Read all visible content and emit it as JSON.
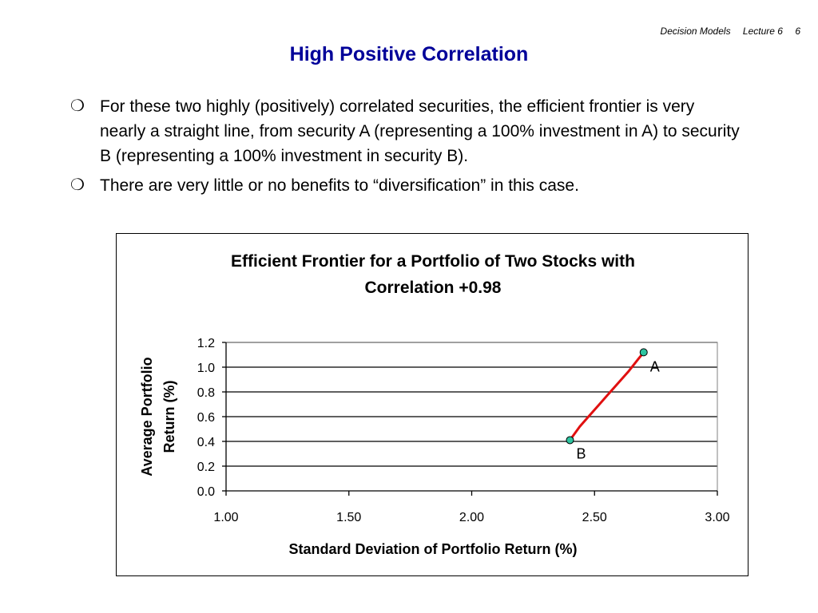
{
  "header": {
    "course": "Decision Models",
    "lecture": "Lecture 6",
    "page": "6"
  },
  "title": "High Positive Correlation",
  "bullets": [
    {
      "icon": "hollow-circle-bullet-icon",
      "mark": "❍",
      "text": "For these two highly (positively) correlated securities, the efficient frontier is very nearly a straight line, from security A (representing a 100% investment in A) to security B (representing a 100% investment in security B)."
    },
    {
      "icon": "hollow-circle-bullet-icon",
      "mark": "❍",
      "text": "There are very little or no benefits to “diversification” in this case."
    }
  ],
  "chart_data": {
    "type": "line",
    "title_lines": [
      "Efficient Frontier for a Portfolio of Two Stocks with",
      "Correlation +0.98"
    ],
    "xlabel": "Standard Deviation of Portfolio Return (%)",
    "ylabel_lines": [
      "Average Portfolio",
      "Return (%)"
    ],
    "xlim": [
      1.0,
      3.0
    ],
    "ylim": [
      0.0,
      1.2
    ],
    "xticks": [
      "1.00",
      "1.50",
      "2.00",
      "2.50",
      "3.00"
    ],
    "yticks": [
      "0.0",
      "0.2",
      "0.4",
      "0.6",
      "0.8",
      "1.0",
      "1.2"
    ],
    "grid": "horizontal",
    "series": [
      {
        "color": "#e01010",
        "x": [
          2.4,
          2.44,
          2.48,
          2.52,
          2.56,
          2.6,
          2.64,
          2.68,
          2.7
        ],
        "y": [
          0.41,
          0.52,
          0.61,
          0.7,
          0.79,
          0.88,
          0.97,
          1.07,
          1.12
        ]
      }
    ],
    "points": [
      {
        "label": "A",
        "x": 2.7,
        "y": 1.12,
        "color": "#2ec4a0"
      },
      {
        "label": "B",
        "x": 2.4,
        "y": 0.41,
        "color": "#2ec4a0"
      }
    ]
  }
}
